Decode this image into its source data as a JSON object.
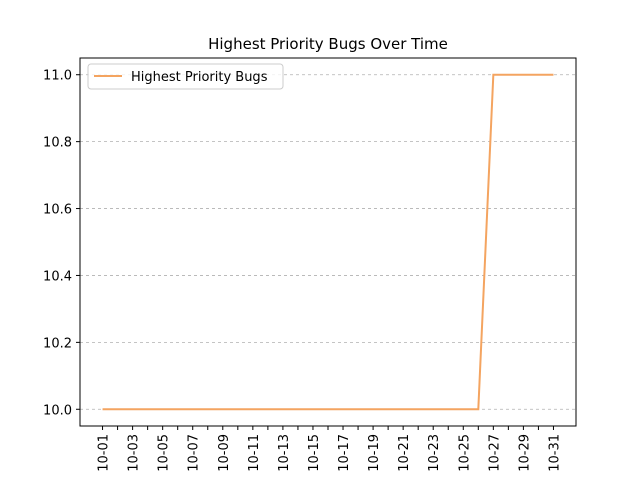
{
  "chart_data": {
    "type": "line",
    "title": "Highest Priority Bugs Over Time",
    "categories": [
      "10-01",
      null,
      "10-03",
      null,
      "10-05",
      null,
      "10-07",
      null,
      "10-09",
      null,
      "10-11",
      null,
      "10-13",
      null,
      "10-15",
      null,
      "10-17",
      null,
      "10-19",
      null,
      "10-21",
      null,
      "10-23",
      null,
      "10-25",
      null,
      "10-27",
      null,
      "10-29",
      null,
      "10-31"
    ],
    "series": [
      {
        "name": "Highest Priority Bugs",
        "color": "#f4a460",
        "values": [
          10,
          10,
          10,
          10,
          10,
          10,
          10,
          10,
          10,
          10,
          10,
          10,
          10,
          10,
          10,
          10,
          10,
          10,
          10,
          10,
          10,
          10,
          10,
          10,
          10,
          10,
          11,
          11,
          11,
          11,
          11
        ]
      }
    ],
    "ylim": [
      9.95,
      11.05
    ],
    "yticks": [
      {
        "value": 10,
        "label": "10.0"
      },
      10.2,
      10.4,
      10.6,
      10.8,
      {
        "value": 11,
        "label": "11.0"
      }
    ],
    "grid": true,
    "legend": "upper left"
  }
}
